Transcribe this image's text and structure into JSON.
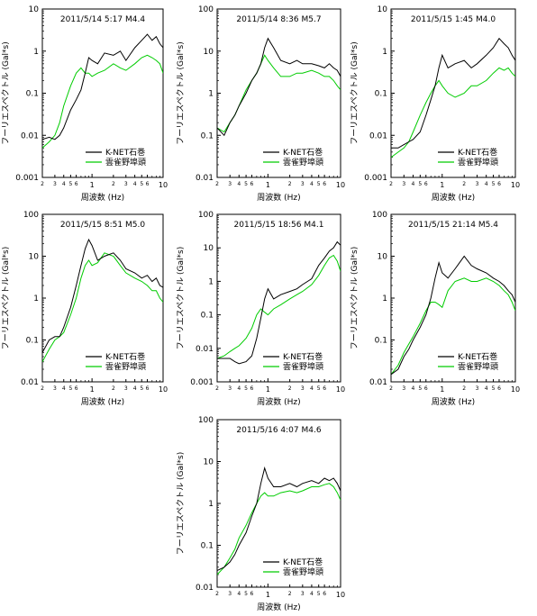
{
  "chart_data": [
    {
      "type": "line",
      "title": "2011/5/14 5:17 M4.4",
      "xlabel": "周波数 (Hz)",
      "ylabel": "フーリエスペクトル (Gal*s)",
      "xscale": "log",
      "yscale": "log",
      "xlim": [
        0.2,
        10
      ],
      "ylim": [
        0.001,
        10
      ],
      "yticks": [
        "0.001",
        "0.01",
        "0.1",
        "1",
        "10"
      ],
      "xticks": [
        "2",
        "3",
        "4",
        "5",
        "6",
        "1",
        "2",
        "3",
        "4",
        "5",
        "6",
        "10"
      ],
      "legend_position": "lower-right",
      "series": [
        {
          "name": "K-NET石巻",
          "color": "#000000",
          "x": [
            0.2,
            0.25,
            0.3,
            0.35,
            0.4,
            0.5,
            0.6,
            0.7,
            0.8,
            0.9,
            1.0,
            1.2,
            1.5,
            2,
            2.5,
            3,
            4,
            5,
            6,
            7,
            8,
            9,
            10
          ],
          "y": [
            0.008,
            0.009,
            0.008,
            0.01,
            0.015,
            0.04,
            0.07,
            0.12,
            0.3,
            0.7,
            0.6,
            0.5,
            0.9,
            0.8,
            1.0,
            0.6,
            1.2,
            1.8,
            2.5,
            1.8,
            2.2,
            1.5,
            1.2
          ]
        },
        {
          "name": "雲雀野埠頭",
          "color": "#00cc00",
          "x": [
            0.2,
            0.25,
            0.3,
            0.35,
            0.4,
            0.5,
            0.6,
            0.7,
            0.8,
            0.9,
            1.0,
            1.2,
            1.5,
            2,
            2.5,
            3,
            4,
            5,
            6,
            7,
            8,
            9,
            10
          ],
          "y": [
            0.005,
            0.007,
            0.01,
            0.02,
            0.05,
            0.15,
            0.3,
            0.4,
            0.3,
            0.3,
            0.25,
            0.3,
            0.35,
            0.5,
            0.4,
            0.35,
            0.5,
            0.7,
            0.8,
            0.7,
            0.6,
            0.5,
            0.3
          ]
        }
      ]
    },
    {
      "type": "line",
      "title": "2011/5/14 8:36 M5.7",
      "xlabel": "周波数 (Hz)",
      "ylabel": "フーリエスペクトル (Gal*s)",
      "xscale": "log",
      "yscale": "log",
      "xlim": [
        0.2,
        10
      ],
      "ylim": [
        0.01,
        100
      ],
      "yticks": [
        "0.01",
        "0.1",
        "1",
        "10",
        "100"
      ],
      "xticks": [
        "2",
        "3",
        "4",
        "5",
        "6",
        "1",
        "2",
        "3",
        "4",
        "5",
        "6",
        "10"
      ],
      "legend_position": "lower-right",
      "series": [
        {
          "name": "K-NET石巻",
          "color": "#000000",
          "x": [
            0.2,
            0.25,
            0.3,
            0.35,
            0.4,
            0.5,
            0.6,
            0.7,
            0.8,
            0.9,
            1.0,
            1.2,
            1.5,
            2,
            2.5,
            3,
            4,
            5,
            6,
            7,
            8,
            9,
            10
          ],
          "y": [
            0.15,
            0.1,
            0.2,
            0.3,
            0.5,
            1.0,
            2.0,
            3.0,
            5.0,
            12,
            20,
            12,
            6,
            5,
            6,
            5,
            5,
            4.5,
            4,
            5,
            4,
            3.5,
            2.5
          ]
        },
        {
          "name": "雲雀野埠頭",
          "color": "#00cc00",
          "x": [
            0.2,
            0.25,
            0.3,
            0.35,
            0.4,
            0.5,
            0.6,
            0.7,
            0.8,
            0.9,
            1.0,
            1.2,
            1.5,
            2,
            2.5,
            3,
            4,
            5,
            6,
            7,
            8,
            9,
            10
          ],
          "y": [
            0.15,
            0.12,
            0.2,
            0.3,
            0.5,
            1.2,
            2.0,
            3.0,
            5.0,
            8,
            6,
            4,
            2.5,
            2.5,
            3,
            3,
            3.5,
            3,
            2.5,
            2.5,
            2,
            1.5,
            1.2
          ]
        }
      ]
    },
    {
      "type": "line",
      "title": "2011/5/15 1:45 M4.0",
      "xlabel": "周波数 (Hz)",
      "ylabel": "フーリエスペクトル (Gal*s)",
      "xscale": "log",
      "yscale": "log",
      "xlim": [
        0.2,
        10
      ],
      "ylim": [
        0.001,
        10
      ],
      "yticks": [
        "0.001",
        "0.01",
        "0.1",
        "1",
        "10"
      ],
      "xticks": [
        "2",
        "3",
        "4",
        "5",
        "6",
        "1",
        "2",
        "3",
        "4",
        "5",
        "6",
        "10"
      ],
      "legend_position": "lower-right",
      "series": [
        {
          "name": "K-NET石巻",
          "color": "#000000",
          "x": [
            0.2,
            0.25,
            0.3,
            0.35,
            0.4,
            0.5,
            0.6,
            0.7,
            0.8,
            0.9,
            1.0,
            1.2,
            1.5,
            2,
            2.5,
            3,
            4,
            5,
            6,
            7,
            8,
            9,
            10
          ],
          "y": [
            0.005,
            0.005,
            0.006,
            0.007,
            0.008,
            0.012,
            0.03,
            0.07,
            0.15,
            0.4,
            0.8,
            0.4,
            0.5,
            0.6,
            0.4,
            0.5,
            0.8,
            1.2,
            2.0,
            1.5,
            1.2,
            0.8,
            0.6
          ]
        },
        {
          "name": "雲雀野埠頭",
          "color": "#00cc00",
          "x": [
            0.2,
            0.25,
            0.3,
            0.35,
            0.4,
            0.5,
            0.6,
            0.7,
            0.8,
            0.9,
            1.0,
            1.2,
            1.5,
            2,
            2.5,
            3,
            4,
            5,
            6,
            7,
            8,
            9,
            10
          ],
          "y": [
            0.003,
            0.004,
            0.005,
            0.007,
            0.012,
            0.03,
            0.06,
            0.1,
            0.15,
            0.2,
            0.15,
            0.1,
            0.08,
            0.1,
            0.15,
            0.15,
            0.2,
            0.3,
            0.4,
            0.35,
            0.4,
            0.3,
            0.25
          ]
        }
      ]
    },
    {
      "type": "line",
      "title": "2011/5/15 8:51 M5.0",
      "xlabel": "周波数 (Hz)",
      "ylabel": "フーリエスペクトル (Gal*s)",
      "xscale": "log",
      "yscale": "log",
      "xlim": [
        0.2,
        10
      ],
      "ylim": [
        0.01,
        100
      ],
      "yticks": [
        "0.01",
        "0.1",
        "1",
        "10",
        "100"
      ],
      "xticks": [
        "2",
        "3",
        "4",
        "5",
        "6",
        "1",
        "2",
        "3",
        "4",
        "5",
        "6",
        "10"
      ],
      "legend_position": "lower-right",
      "series": [
        {
          "name": "K-NET石巻",
          "color": "#000000",
          "x": [
            0.2,
            0.25,
            0.3,
            0.35,
            0.4,
            0.5,
            0.6,
            0.7,
            0.8,
            0.9,
            1.0,
            1.2,
            1.5,
            2,
            2.5,
            3,
            4,
            5,
            6,
            7,
            8,
            9,
            10
          ],
          "y": [
            0.05,
            0.1,
            0.12,
            0.12,
            0.2,
            0.6,
            2.0,
            6.0,
            15,
            25,
            18,
            8,
            10,
            12,
            8,
            5,
            4,
            3,
            3.5,
            2.5,
            3,
            2,
            1.8
          ]
        },
        {
          "name": "雲雀野埠頭",
          "color": "#00cc00",
          "x": [
            0.2,
            0.25,
            0.3,
            0.35,
            0.4,
            0.5,
            0.6,
            0.7,
            0.8,
            0.9,
            1.0,
            1.2,
            1.5,
            2,
            2.5,
            3,
            4,
            5,
            6,
            7,
            8,
            9,
            10
          ],
          "y": [
            0.03,
            0.06,
            0.1,
            0.12,
            0.15,
            0.4,
            1.0,
            3.0,
            6,
            8,
            6,
            7,
            12,
            10,
            6,
            4,
            3,
            2.5,
            2,
            1.5,
            1.5,
            1.0,
            0.8
          ]
        }
      ]
    },
    {
      "type": "line",
      "title": "2011/5/15 18:56 M4.1",
      "xlabel": "周波数 (Hz)",
      "ylabel": "フーリエスペクトル (Gal*s)",
      "xscale": "log",
      "yscale": "log",
      "xlim": [
        0.2,
        10
      ],
      "ylim": [
        0.001,
        100
      ],
      "yticks": [
        "0.001",
        "0.01",
        "0.1",
        "1",
        "10",
        "100"
      ],
      "xticks": [
        "2",
        "3",
        "4",
        "5",
        "6",
        "1",
        "2",
        "3",
        "4",
        "5",
        "6",
        "10"
      ],
      "legend_position": "lower-right",
      "series": [
        {
          "name": "K-NET石巻",
          "color": "#000000",
          "x": [
            0.2,
            0.25,
            0.3,
            0.35,
            0.4,
            0.5,
            0.6,
            0.7,
            0.8,
            0.9,
            1.0,
            1.2,
            1.5,
            2,
            2.5,
            3,
            4,
            5,
            6,
            7,
            8,
            9,
            10
          ],
          "y": [
            0.005,
            0.005,
            0.005,
            0.004,
            0.0035,
            0.004,
            0.006,
            0.02,
            0.08,
            0.3,
            0.6,
            0.3,
            0.4,
            0.5,
            0.6,
            0.8,
            1.2,
            3.0,
            5.0,
            8,
            10,
            15,
            12
          ]
        },
        {
          "name": "雲雀野埠頭",
          "color": "#00cc00",
          "x": [
            0.2,
            0.25,
            0.3,
            0.35,
            0.4,
            0.5,
            0.6,
            0.7,
            0.8,
            0.9,
            1.0,
            1.2,
            1.5,
            2,
            2.5,
            3,
            4,
            5,
            6,
            7,
            8,
            9,
            10
          ],
          "y": [
            0.005,
            0.006,
            0.008,
            0.01,
            0.012,
            0.02,
            0.04,
            0.1,
            0.15,
            0.12,
            0.1,
            0.15,
            0.2,
            0.3,
            0.4,
            0.5,
            0.8,
            1.5,
            3.0,
            5,
            6,
            4,
            2
          ]
        }
      ]
    },
    {
      "type": "line",
      "title": "2011/5/15 21:14 M5.4",
      "xlabel": "周波数 (Hz)",
      "ylabel": "フーリエスペクトル (Gal*s)",
      "xscale": "log",
      "yscale": "log",
      "xlim": [
        0.2,
        10
      ],
      "ylim": [
        0.01,
        100
      ],
      "yticks": [
        "0.01",
        "0.1",
        "1",
        "10",
        "100"
      ],
      "xticks": [
        "2",
        "3",
        "4",
        "5",
        "6",
        "1",
        "2",
        "3",
        "4",
        "5",
        "6",
        "10"
      ],
      "legend_position": "lower-right",
      "series": [
        {
          "name": "K-NET石巻",
          "color": "#000000",
          "x": [
            0.2,
            0.25,
            0.3,
            0.35,
            0.4,
            0.5,
            0.6,
            0.7,
            0.8,
            0.9,
            1.0,
            1.2,
            1.5,
            2,
            2.5,
            3,
            4,
            5,
            6,
            7,
            8,
            9,
            10
          ],
          "y": [
            0.015,
            0.02,
            0.04,
            0.06,
            0.1,
            0.2,
            0.4,
            1.0,
            3.0,
            7.0,
            4.0,
            3.0,
            5.0,
            10,
            6,
            5,
            4,
            3,
            2.5,
            2,
            1.5,
            1.2,
            0.8
          ]
        },
        {
          "name": "雲雀野埠頭",
          "color": "#00cc00",
          "x": [
            0.2,
            0.25,
            0.3,
            0.35,
            0.4,
            0.5,
            0.6,
            0.7,
            0.8,
            0.9,
            1.0,
            1.2,
            1.5,
            2,
            2.5,
            3,
            4,
            5,
            6,
            7,
            8,
            9,
            10
          ],
          "y": [
            0.015,
            0.025,
            0.05,
            0.08,
            0.12,
            0.25,
            0.5,
            0.8,
            0.8,
            0.7,
            0.6,
            1.5,
            2.5,
            3.0,
            2.5,
            2.5,
            3,
            2.5,
            2,
            1.5,
            1.2,
            0.8,
            0.5
          ]
        }
      ]
    },
    {
      "type": "line",
      "title": "2011/5/16 4:07 M4.6",
      "xlabel": "周波数 (Hz)",
      "ylabel": "フーリエスペクトル (Gal*s)",
      "xscale": "log",
      "yscale": "log",
      "xlim": [
        0.2,
        10
      ],
      "ylim": [
        0.01,
        100
      ],
      "yticks": [
        "0.01",
        "0.1",
        "1",
        "10",
        "100"
      ],
      "xticks": [
        "2",
        "3",
        "4",
        "5",
        "6",
        "1",
        "2",
        "3",
        "4",
        "5",
        "6",
        "10"
      ],
      "legend_position": "lower-right",
      "series": [
        {
          "name": "K-NET石巻",
          "color": "#000000",
          "x": [
            0.2,
            0.25,
            0.3,
            0.35,
            0.4,
            0.5,
            0.6,
            0.7,
            0.8,
            0.9,
            1.0,
            1.2,
            1.5,
            2,
            2.5,
            3,
            4,
            5,
            6,
            7,
            8,
            9,
            10
          ],
          "y": [
            0.025,
            0.03,
            0.04,
            0.06,
            0.1,
            0.2,
            0.5,
            1.0,
            3.0,
            7.0,
            4.0,
            2.5,
            2.5,
            3.0,
            2.5,
            3.0,
            3.5,
            3.0,
            4.0,
            3.5,
            4.0,
            3.0,
            2.0
          ]
        },
        {
          "name": "雲雀野埠頭",
          "color": "#00cc00",
          "x": [
            0.2,
            0.25,
            0.3,
            0.35,
            0.4,
            0.5,
            0.6,
            0.7,
            0.8,
            0.9,
            1.0,
            1.2,
            1.5,
            2,
            2.5,
            3,
            4,
            5,
            6,
            7,
            8,
            9,
            10
          ],
          "y": [
            0.02,
            0.03,
            0.05,
            0.08,
            0.15,
            0.3,
            0.6,
            1.0,
            1.5,
            1.8,
            1.5,
            1.5,
            1.8,
            2.0,
            1.8,
            2.0,
            2.5,
            2.5,
            2.8,
            3.0,
            2.5,
            1.8,
            1.2
          ]
        }
      ]
    }
  ]
}
